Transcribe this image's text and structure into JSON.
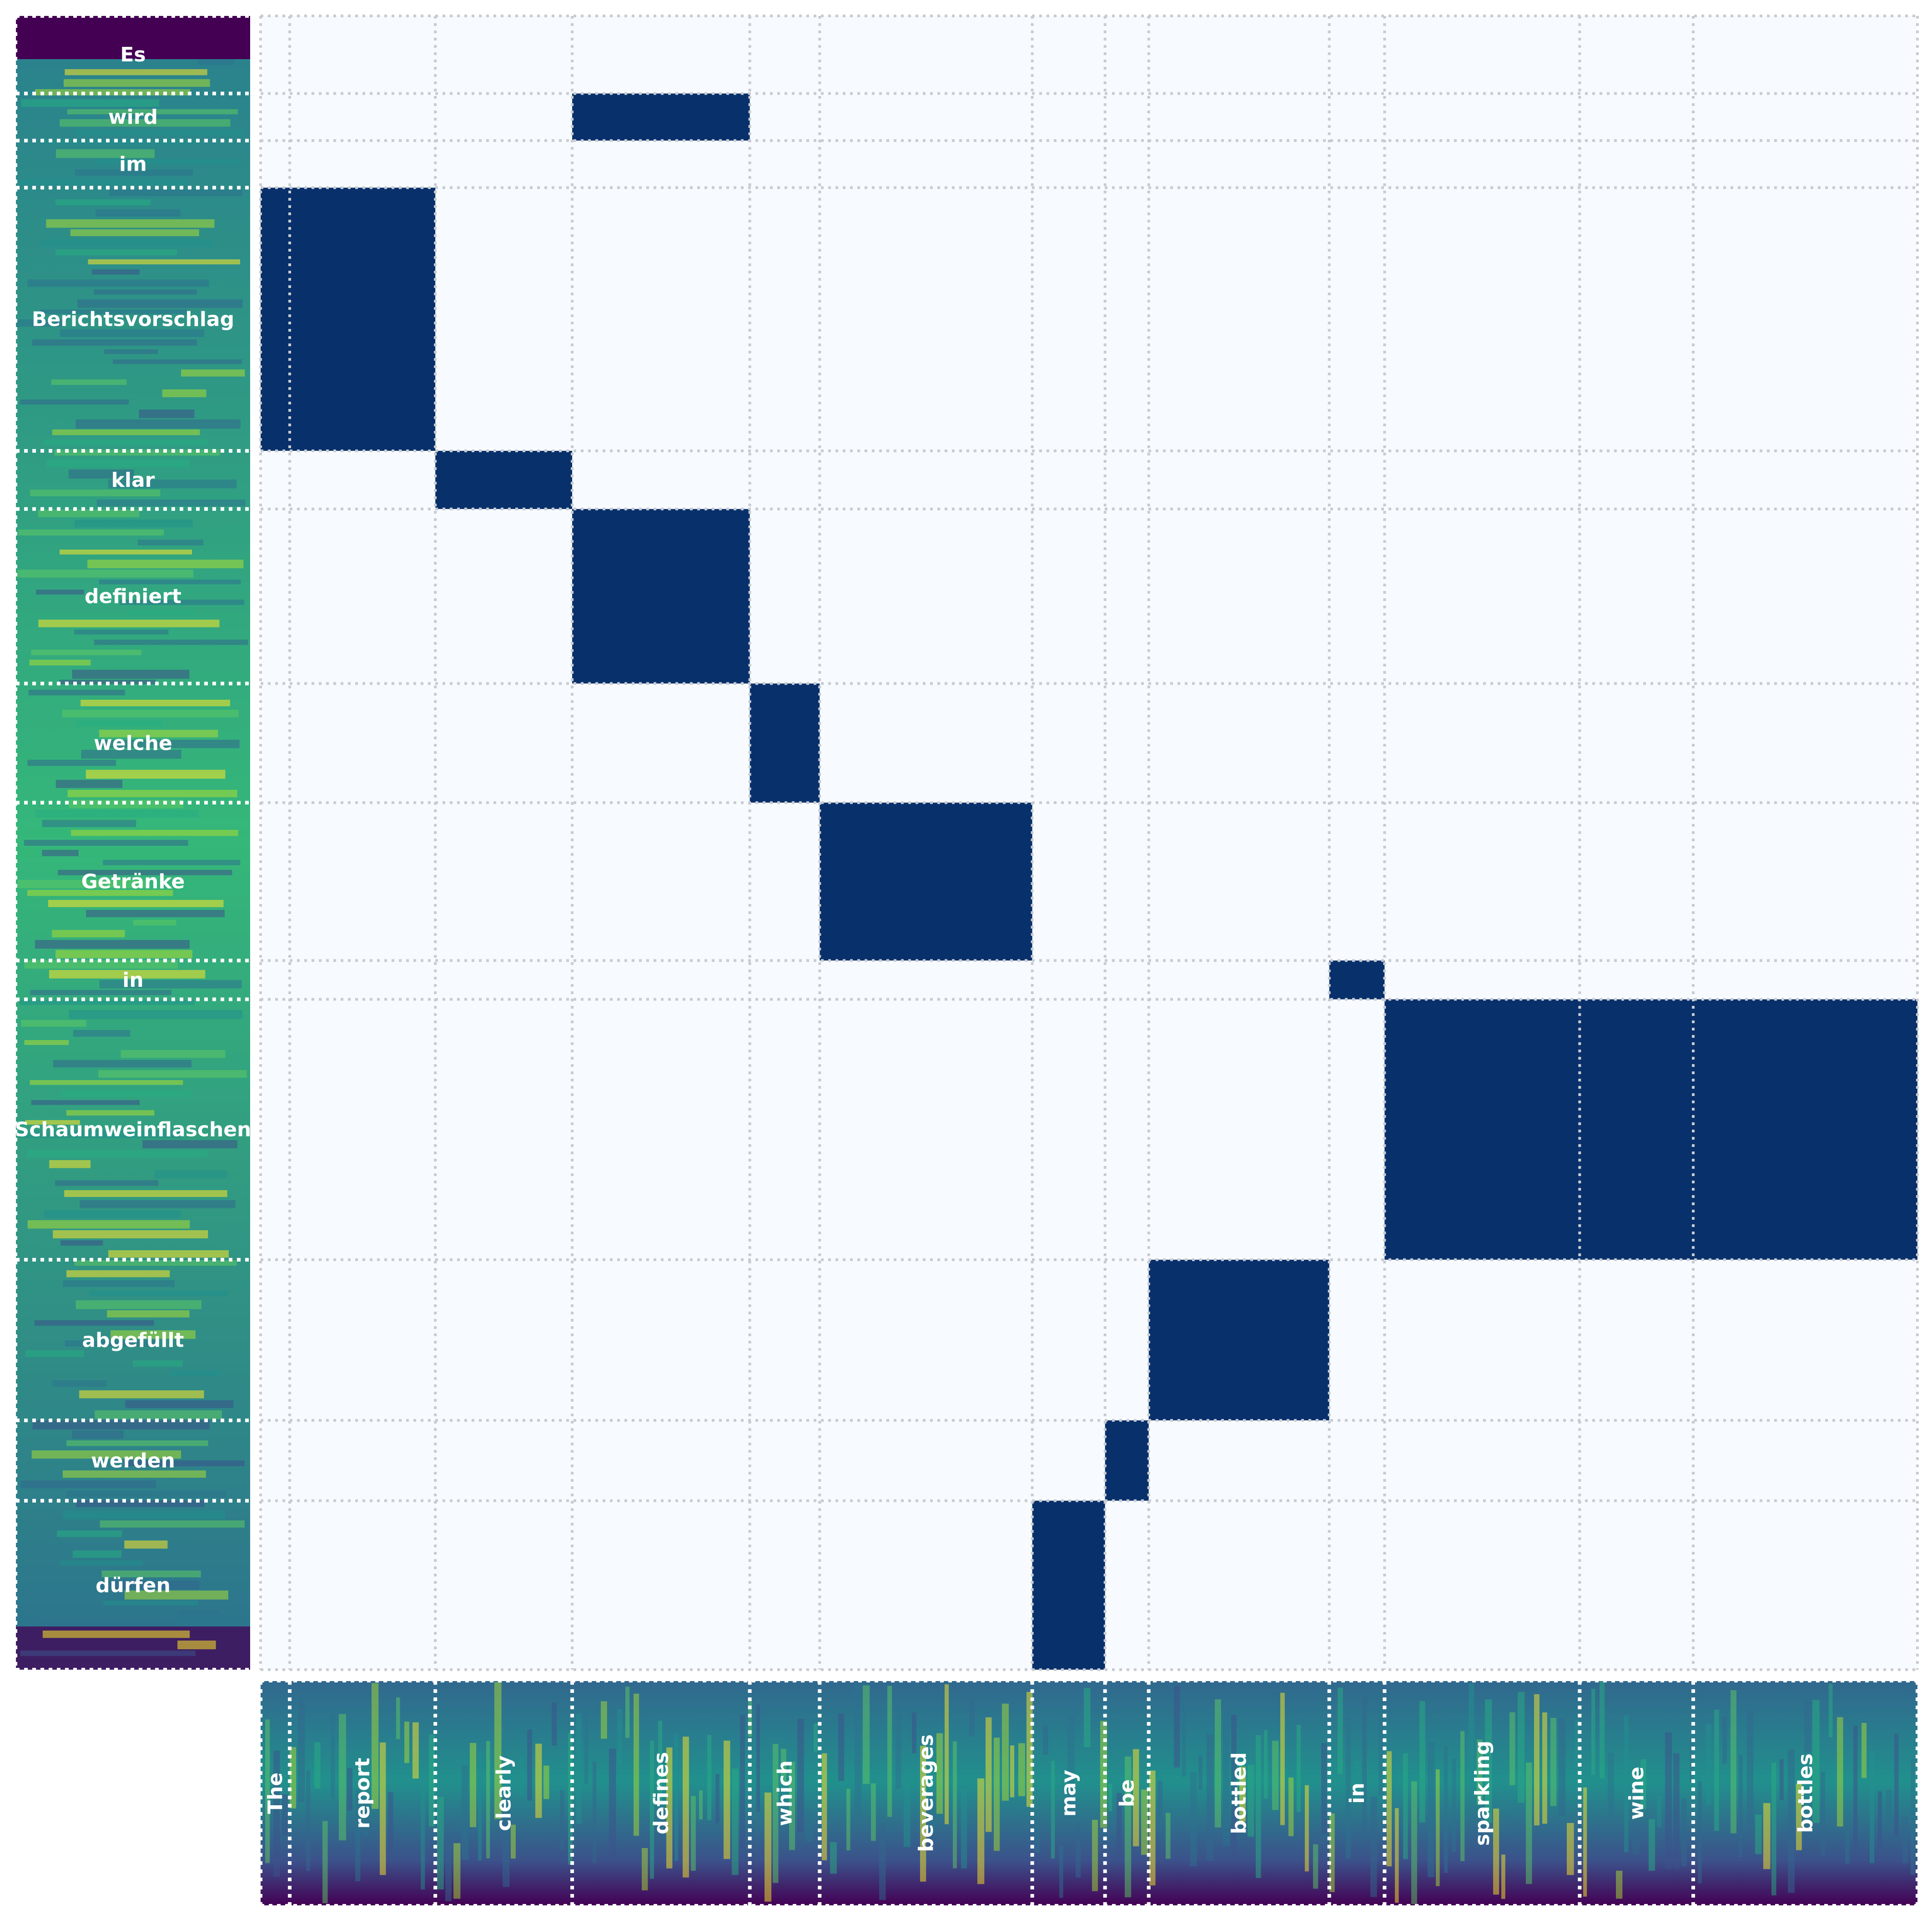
{
  "chart_data": {
    "type": "heatmap",
    "title": "",
    "xlabel": "",
    "ylabel": "",
    "colors": {
      "background": "#f7fbff",
      "cell": "#08306b",
      "grid": "#c8ccd2",
      "spec_dark": "#440154",
      "spec_mid": "#21908d",
      "spec_light": "#fde725"
    },
    "x_words": [
      {
        "label": "The",
        "start": 0.0,
        "end": 0.1
      },
      {
        "label": "report",
        "start": 0.1,
        "end": 0.6
      },
      {
        "label": "clearly",
        "start": 0.6,
        "end": 1.07
      },
      {
        "label": "defines",
        "start": 1.07,
        "end": 1.68
      },
      {
        "label": "which",
        "start": 1.68,
        "end": 1.92
      },
      {
        "label": "beverages",
        "start": 1.92,
        "end": 2.65
      },
      {
        "label": "may",
        "start": 2.65,
        "end": 2.9
      },
      {
        "label": "be",
        "start": 2.9,
        "end": 3.05
      },
      {
        "label": "bottled",
        "start": 3.05,
        "end": 3.67
      },
      {
        "label": "in",
        "start": 3.67,
        "end": 3.86
      },
      {
        "label": "sparkling",
        "start": 3.86,
        "end": 4.53
      },
      {
        "label": "wine",
        "start": 4.53,
        "end": 4.92
      },
      {
        "label": "bottles",
        "start": 4.92,
        "end": 5.69
      }
    ],
    "y_words": [
      {
        "label": "Es",
        "start": 0.0,
        "end": 0.28
      },
      {
        "label": "wird",
        "start": 0.28,
        "end": 0.45
      },
      {
        "label": "im",
        "start": 0.45,
        "end": 0.62
      },
      {
        "label": "Berichtsvorschlag",
        "start": 0.62,
        "end": 1.57
      },
      {
        "label": "klar",
        "start": 1.57,
        "end": 1.78
      },
      {
        "label": "definiert",
        "start": 1.78,
        "end": 2.41
      },
      {
        "label": "welche",
        "start": 2.41,
        "end": 2.84
      },
      {
        "label": "Getränke",
        "start": 2.84,
        "end": 3.41
      },
      {
        "label": "in",
        "start": 3.41,
        "end": 3.55
      },
      {
        "label": "Schaumweinflaschen",
        "start": 3.55,
        "end": 4.49
      },
      {
        "label": "abgefüllt",
        "start": 4.49,
        "end": 5.07
      },
      {
        "label": "werden",
        "start": 5.07,
        "end": 5.36
      },
      {
        "label": "dürfen",
        "start": 5.36,
        "end": 5.97
      }
    ],
    "alignments": [
      {
        "y": "wird",
        "x": [
          "defines"
        ]
      },
      {
        "y": "Berichtsvorschlag",
        "x": [
          "The",
          "report"
        ]
      },
      {
        "y": "klar",
        "x": [
          "clearly"
        ]
      },
      {
        "y": "definiert",
        "x": [
          "defines"
        ]
      },
      {
        "y": "welche",
        "x": [
          "which"
        ]
      },
      {
        "y": "Getränke",
        "x": [
          "beverages"
        ]
      },
      {
        "y": "in",
        "x": [
          "in"
        ]
      },
      {
        "y": "Schaumweinflaschen",
        "x": [
          "sparkling",
          "wine",
          "bottles"
        ]
      },
      {
        "y": "abgefüllt",
        "x": [
          "bottled"
        ]
      },
      {
        "y": "werden",
        "x": [
          "be"
        ]
      },
      {
        "y": "dürfen",
        "x": [
          "may"
        ]
      }
    ]
  }
}
